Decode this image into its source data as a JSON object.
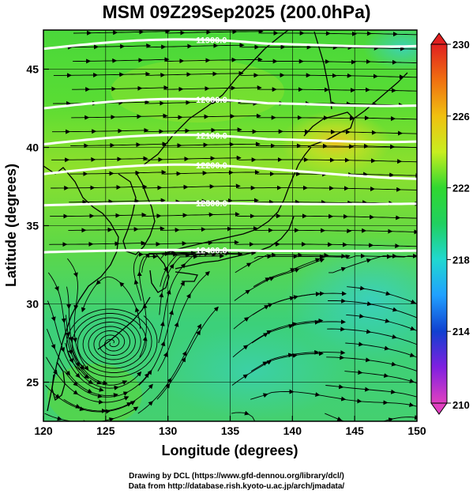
{
  "title": "MSM 09Z29Sep2025 (200.0hPa)",
  "x_axis": {
    "label": "Longitude (degrees)",
    "ticks": [
      "120",
      "125",
      "130",
      "135",
      "140",
      "145",
      "150"
    ],
    "range": [
      120,
      150
    ]
  },
  "y_axis": {
    "label": "Latitude  (degrees)",
    "ticks": [
      "25",
      "30",
      "35",
      "40",
      "45"
    ],
    "range": [
      22.5,
      47.5
    ]
  },
  "colorbar": {
    "range": [
      210,
      230
    ],
    "ticks": [
      "210",
      "214",
      "218",
      "222",
      "226",
      "230"
    ],
    "colors": {
      "210": "#e040c0",
      "212": "#8020e0",
      "214": "#1040d0",
      "216": "#20a0ff",
      "218": "#20d8d0",
      "220": "#20d060",
      "222": "#30d830",
      "224": "#c8ee20",
      "226": "#f0c010",
      "228": "#f07010",
      "230": "#e02020"
    }
  },
  "contours": [
    {
      "label": "11900.0",
      "lat": 46.3
    },
    {
      "label": "12000.0",
      "lat": 42.5
    },
    {
      "label": "12100.0",
      "lat": 40.2
    },
    {
      "label": "12200.0",
      "lat": 38.3
    },
    {
      "label": "12300.0",
      "lat": 36.3
    },
    {
      "label": "12400.0",
      "lat": 33.3
    }
  ],
  "features": {
    "cyclone_center": {
      "lon": 125.5,
      "lat": 27.5
    }
  },
  "credits": [
    "Drawing by DCL (https://www.gfd-dennou.org/library/dcl/)",
    "Data from http://database.rish.kyoto-u.ac.jp/arch/jmadata/"
  ]
}
